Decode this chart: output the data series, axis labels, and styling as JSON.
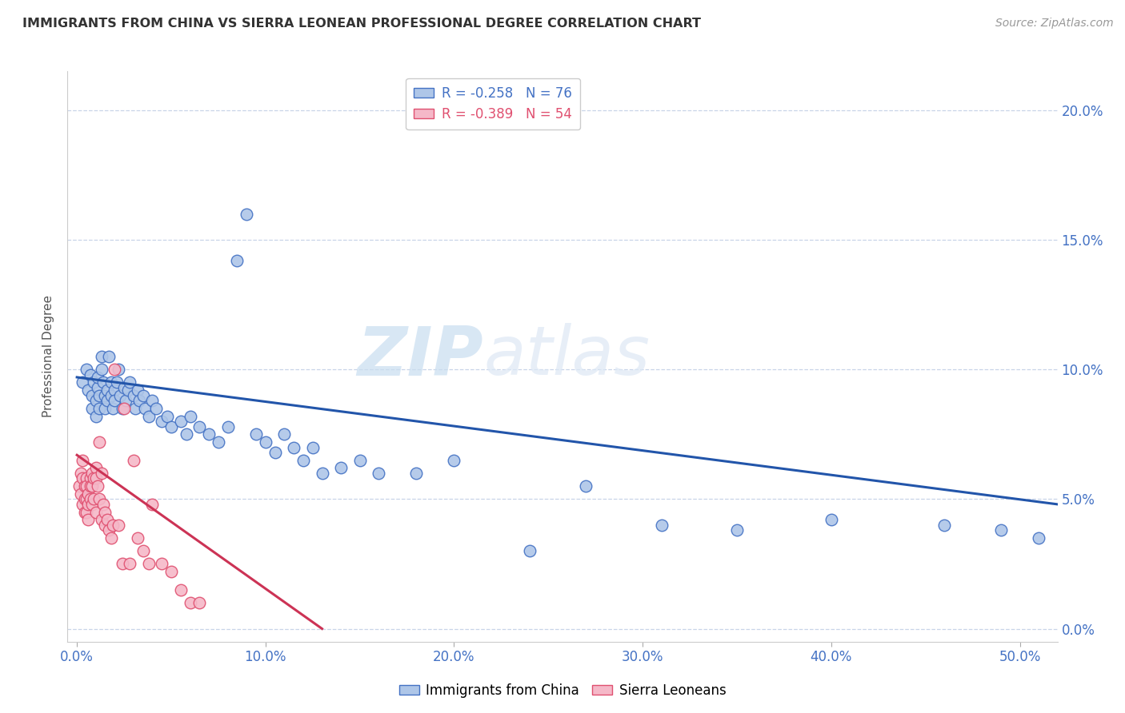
{
  "title": "IMMIGRANTS FROM CHINA VS SIERRA LEONEAN PROFESSIONAL DEGREE CORRELATION CHART",
  "source": "Source: ZipAtlas.com",
  "ylabel": "Professional Degree",
  "xlabel_ticks": [
    "0.0%",
    "10.0%",
    "20.0%",
    "30.0%",
    "40.0%",
    "50.0%"
  ],
  "xlabel_vals": [
    0.0,
    0.1,
    0.2,
    0.3,
    0.4,
    0.5
  ],
  "ylabel_ticks": [
    "0.0%",
    "5.0%",
    "10.0%",
    "15.0%",
    "20.0%"
  ],
  "ylabel_vals": [
    0.0,
    0.05,
    0.1,
    0.15,
    0.2
  ],
  "xlim": [
    -0.005,
    0.52
  ],
  "ylim": [
    -0.005,
    0.215
  ],
  "china_color": "#aec6e8",
  "sierra_color": "#f5b8c8",
  "china_edge_color": "#4472c4",
  "sierra_edge_color": "#e05070",
  "trendline_china_color": "#2255aa",
  "trendline_sierra_color": "#cc3355",
  "legend_text_china": "R = -0.258   N = 76",
  "legend_text_sierra": "R = -0.389   N = 54",
  "legend_label_china": "Immigrants from China",
  "legend_label_sierra": "Sierra Leoneans",
  "watermark_zip": "ZIP",
  "watermark_atlas": "atlas",
  "china_scatter_x": [
    0.003,
    0.005,
    0.006,
    0.007,
    0.008,
    0.008,
    0.009,
    0.01,
    0.01,
    0.011,
    0.011,
    0.012,
    0.012,
    0.013,
    0.013,
    0.014,
    0.015,
    0.015,
    0.016,
    0.016,
    0.017,
    0.018,
    0.018,
    0.019,
    0.02,
    0.02,
    0.021,
    0.022,
    0.023,
    0.024,
    0.025,
    0.026,
    0.027,
    0.028,
    0.03,
    0.031,
    0.032,
    0.033,
    0.035,
    0.036,
    0.038,
    0.04,
    0.042,
    0.045,
    0.048,
    0.05,
    0.055,
    0.058,
    0.06,
    0.065,
    0.07,
    0.075,
    0.08,
    0.085,
    0.09,
    0.095,
    0.1,
    0.105,
    0.11,
    0.115,
    0.12,
    0.125,
    0.13,
    0.14,
    0.15,
    0.16,
    0.18,
    0.2,
    0.24,
    0.27,
    0.31,
    0.35,
    0.4,
    0.46,
    0.49,
    0.51
  ],
  "china_scatter_y": [
    0.095,
    0.1,
    0.092,
    0.098,
    0.09,
    0.085,
    0.095,
    0.088,
    0.082,
    0.093,
    0.097,
    0.09,
    0.085,
    0.105,
    0.1,
    0.095,
    0.09,
    0.085,
    0.092,
    0.088,
    0.105,
    0.095,
    0.09,
    0.085,
    0.092,
    0.088,
    0.095,
    0.1,
    0.09,
    0.085,
    0.093,
    0.088,
    0.092,
    0.095,
    0.09,
    0.085,
    0.092,
    0.088,
    0.09,
    0.085,
    0.082,
    0.088,
    0.085,
    0.08,
    0.082,
    0.078,
    0.08,
    0.075,
    0.082,
    0.078,
    0.075,
    0.072,
    0.078,
    0.142,
    0.16,
    0.075,
    0.072,
    0.068,
    0.075,
    0.07,
    0.065,
    0.07,
    0.06,
    0.062,
    0.065,
    0.06,
    0.06,
    0.065,
    0.03,
    0.055,
    0.04,
    0.038,
    0.042,
    0.04,
    0.038,
    0.035
  ],
  "sierra_scatter_x": [
    0.001,
    0.002,
    0.002,
    0.003,
    0.003,
    0.003,
    0.004,
    0.004,
    0.004,
    0.005,
    0.005,
    0.005,
    0.005,
    0.006,
    0.006,
    0.006,
    0.007,
    0.007,
    0.007,
    0.008,
    0.008,
    0.008,
    0.009,
    0.009,
    0.01,
    0.01,
    0.01,
    0.011,
    0.012,
    0.012,
    0.013,
    0.013,
    0.014,
    0.015,
    0.015,
    0.016,
    0.017,
    0.018,
    0.019,
    0.02,
    0.022,
    0.024,
    0.025,
    0.028,
    0.03,
    0.032,
    0.035,
    0.038,
    0.04,
    0.045,
    0.05,
    0.055,
    0.06,
    0.065
  ],
  "sierra_scatter_y": [
    0.055,
    0.06,
    0.052,
    0.058,
    0.065,
    0.048,
    0.055,
    0.05,
    0.045,
    0.058,
    0.055,
    0.05,
    0.045,
    0.052,
    0.048,
    0.042,
    0.058,
    0.055,
    0.05,
    0.06,
    0.055,
    0.048,
    0.058,
    0.05,
    0.062,
    0.058,
    0.045,
    0.055,
    0.072,
    0.05,
    0.06,
    0.042,
    0.048,
    0.045,
    0.04,
    0.042,
    0.038,
    0.035,
    0.04,
    0.1,
    0.04,
    0.025,
    0.085,
    0.025,
    0.065,
    0.035,
    0.03,
    0.025,
    0.048,
    0.025,
    0.022,
    0.015,
    0.01,
    0.01
  ],
  "china_trend_x": [
    0.0,
    0.52
  ],
  "china_trend_y": [
    0.097,
    0.048
  ],
  "sierra_trend_x": [
    0.0,
    0.13
  ],
  "sierra_trend_y": [
    0.067,
    0.0
  ]
}
